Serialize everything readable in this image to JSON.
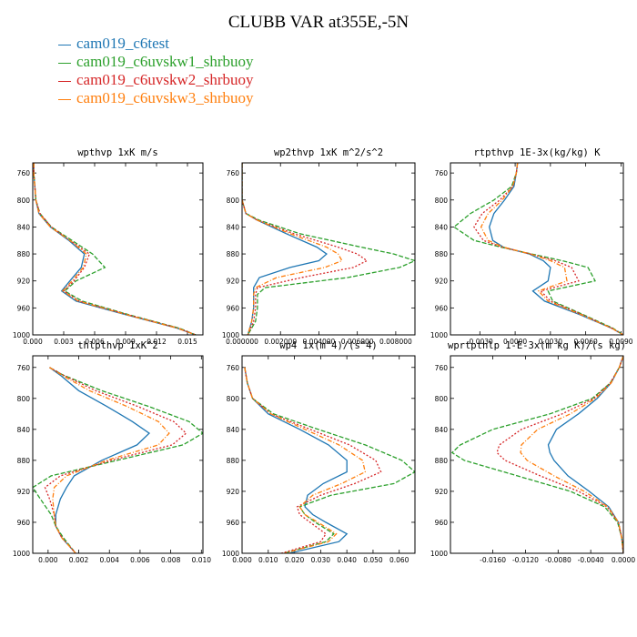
{
  "title": "CLUBB VAR at355E,-5N",
  "legend": [
    {
      "name": "cam019_c6test",
      "color": "#1f77b4",
      "dash": ""
    },
    {
      "name": "cam019_c6uvskw1_shrbuoy",
      "color": "#2ca02c",
      "dash": "5,2"
    },
    {
      "name": "cam019_c6uvskw2_shrbuoy",
      "color": "#d62728",
      "dash": "2,2"
    },
    {
      "name": "cam019_c6uvskw3_shrbuoy",
      "color": "#ff7f0e",
      "dash": "5,2,1,2"
    }
  ],
  "chart_data": [
    {
      "type": "line",
      "title": "wpthvp  1xK m/s",
      "xlim": [
        0.0,
        0.0165
      ],
      "ylim": [
        1000,
        745
      ],
      "xticks": [
        "0.000",
        "0.003",
        "0.006",
        "0.009",
        "0.012",
        "0.015"
      ],
      "xtick_values": [
        0,
        0.003,
        0.006,
        0.009,
        0.012,
        0.015
      ],
      "yticks": [
        "760",
        "800",
        "840",
        "880",
        "920",
        "960",
        "1000"
      ],
      "y": [
        745,
        760,
        780,
        800,
        820,
        840,
        860,
        880,
        900,
        920,
        935,
        950,
        970,
        990,
        1000
      ],
      "series": [
        {
          "name": "cam019_c6test",
          "values": [
            0.0001,
            0.0001,
            0.0002,
            0.0003,
            0.0006,
            0.0017,
            0.0035,
            0.005,
            0.0047,
            0.0036,
            0.0028,
            0.0042,
            0.009,
            0.014,
            0.0158
          ]
        },
        {
          "name": "cam019_c6uvskw1_shrbuoy",
          "values": [
            0.0001,
            0.0001,
            0.0002,
            0.0003,
            0.0007,
            0.0018,
            0.0038,
            0.0058,
            0.007,
            0.0042,
            0.0031,
            0.0048,
            0.0093,
            0.0142,
            0.0158
          ]
        },
        {
          "name": "cam019_c6uvskw2_shrbuoy",
          "values": [
            0.0001,
            0.0001,
            0.0002,
            0.0003,
            0.0007,
            0.0018,
            0.0036,
            0.0055,
            0.005,
            0.004,
            0.003,
            0.0045,
            0.0092,
            0.0141,
            0.0158
          ]
        },
        {
          "name": "cam019_c6uvskw3_shrbuoy",
          "values": [
            0.0001,
            0.0001,
            0.0002,
            0.0003,
            0.0006,
            0.0017,
            0.0036,
            0.0052,
            0.0049,
            0.0038,
            0.0029,
            0.0044,
            0.0091,
            0.014,
            0.0158
          ]
        }
      ]
    },
    {
      "type": "line",
      "title": "wp2thvp  1xK m^2/s^2",
      "xlim": [
        0.0,
        0.009
      ],
      "ylim": [
        1000,
        745
      ],
      "xticks": [
        "0.000000",
        "0.002000",
        "0.004000",
        "0.006000",
        "0.008000"
      ],
      "xtick_values": [
        0,
        0.002,
        0.004,
        0.006,
        0.008
      ],
      "yticks": [
        "760",
        "800",
        "840",
        "880",
        "920",
        "960",
        "1000"
      ],
      "y": [
        745,
        760,
        780,
        800,
        820,
        830,
        850,
        870,
        880,
        890,
        900,
        915,
        930,
        940,
        960,
        980,
        1000
      ],
      "series": [
        {
          "name": "cam019_c6test",
          "values": [
            0.0,
            0.0,
            0.0,
            0.0,
            0.0002,
            0.0008,
            0.0023,
            0.0039,
            0.0044,
            0.004,
            0.0025,
            0.0009,
            0.0006,
            0.0006,
            0.0006,
            0.0005,
            0.0003
          ]
        },
        {
          "name": "cam019_c6uvskw1_shrbuoy",
          "values": [
            0.0,
            0.0,
            0.0,
            0.0,
            0.0002,
            0.0009,
            0.003,
            0.0062,
            0.0079,
            0.009,
            0.0082,
            0.0055,
            0.0012,
            0.0008,
            0.0008,
            0.0007,
            0.0003
          ]
        },
        {
          "name": "cam019_c6uvskw2_shrbuoy",
          "values": [
            0.0,
            0.0,
            0.0,
            0.0,
            0.0002,
            0.0008,
            0.0027,
            0.005,
            0.006,
            0.0065,
            0.0058,
            0.0031,
            0.0008,
            0.0007,
            0.0007,
            0.0006,
            0.0003
          ]
        },
        {
          "name": "cam019_c6uvskw3_shrbuoy",
          "values": [
            0.0,
            0.0,
            0.0,
            0.0,
            0.0002,
            0.0008,
            0.0025,
            0.0044,
            0.005,
            0.0052,
            0.0043,
            0.0018,
            0.0007,
            0.0006,
            0.0006,
            0.0005,
            0.0003
          ]
        }
      ]
    },
    {
      "type": "line",
      "title": "rtpthvp  1E-3x(kg/kg) K",
      "xlim": [
        -0.0055,
        0.0092
      ],
      "ylim": [
        1000,
        745
      ],
      "xticks": [
        "-0.0030",
        "0.0000",
        "0.0030",
        "0.0060",
        "0.0090"
      ],
      "xtick_values": [
        -0.003,
        0.0,
        0.003,
        0.006,
        0.009
      ],
      "yticks": [
        "760",
        "800",
        "840",
        "880",
        "920",
        "960",
        "1000"
      ],
      "y": [
        745,
        760,
        780,
        800,
        820,
        840,
        860,
        870,
        880,
        890,
        900,
        920,
        935,
        950,
        970,
        990,
        1000
      ],
      "series": [
        {
          "name": "cam019_c6test",
          "values": [
            0.0002,
            0.0001,
            -0.0001,
            -0.0009,
            -0.0018,
            -0.0022,
            -0.0019,
            -0.001,
            0.0012,
            0.0024,
            0.003,
            0.0028,
            0.0015,
            0.0025,
            0.0055,
            0.0082,
            0.0092
          ]
        },
        {
          "name": "cam019_c6uvskw1_shrbuoy",
          "values": [
            0.0002,
            0.0001,
            -0.0003,
            -0.0018,
            -0.0038,
            -0.0052,
            -0.0035,
            -0.0012,
            0.0014,
            0.004,
            0.0062,
            0.0068,
            0.0028,
            0.0032,
            0.0058,
            0.0083,
            0.0092
          ]
        },
        {
          "name": "cam019_c6uvskw2_shrbuoy",
          "values": [
            0.0002,
            0.0001,
            -0.0002,
            -0.0013,
            -0.0028,
            -0.0035,
            -0.0027,
            -0.0011,
            0.0013,
            0.0034,
            0.0048,
            0.0054,
            0.0022,
            0.003,
            0.0057,
            0.0082,
            0.0092
          ]
        },
        {
          "name": "cam019_c6uvskw3_shrbuoy",
          "values": [
            0.0002,
            0.0001,
            -0.0002,
            -0.0011,
            -0.0023,
            -0.0029,
            -0.0023,
            -0.001,
            0.0013,
            0.003,
            0.0042,
            0.0044,
            0.002,
            0.0028,
            0.0056,
            0.0082,
            0.0092
          ]
        }
      ]
    },
    {
      "type": "line",
      "title": "thlpthvp  1xK^2",
      "xlim": [
        -0.001,
        0.0101
      ],
      "ylim": [
        1000,
        745
      ],
      "xticks": [
        "0.000",
        "0.002",
        "0.004",
        "0.006",
        "0.008",
        "0.010"
      ],
      "xtick_values": [
        0,
        0.002,
        0.004,
        0.006,
        0.008,
        0.01
      ],
      "yticks": [
        "760",
        "800",
        "840",
        "880",
        "920",
        "960",
        "1000"
      ],
      "y": [
        760,
        770,
        790,
        810,
        830,
        845,
        860,
        880,
        900,
        915,
        930,
        950,
        965,
        980,
        1000
      ],
      "series": [
        {
          "name": "cam019_c6test",
          "values": [
            0.0001,
            0.0008,
            0.002,
            0.0038,
            0.0055,
            0.0066,
            0.0058,
            0.0035,
            0.0017,
            0.0012,
            0.0008,
            0.0005,
            0.0005,
            0.0009,
            0.0018
          ]
        },
        {
          "name": "cam019_c6uvskw1_shrbuoy",
          "values": [
            0.0001,
            0.001,
            0.0035,
            0.0065,
            0.0092,
            0.0101,
            0.0088,
            0.0045,
            0.0002,
            -0.001,
            -0.0005,
            0.0002,
            0.0005,
            0.001,
            0.0018
          ]
        },
        {
          "name": "cam019_c6uvskw2_shrbuoy",
          "values": [
            0.0001,
            0.001,
            0.0031,
            0.0058,
            0.0082,
            0.009,
            0.0081,
            0.0041,
            0.0008,
            -0.0002,
            0.0001,
            0.0004,
            0.0005,
            0.0009,
            0.0018
          ]
        },
        {
          "name": "cam019_c6uvskw3_shrbuoy",
          "values": [
            0.0001,
            0.0009,
            0.0027,
            0.0051,
            0.0072,
            0.0079,
            0.0072,
            0.0038,
            0.0012,
            0.0004,
            0.0003,
            0.0004,
            0.0005,
            0.0009,
            0.0018
          ]
        }
      ]
    },
    {
      "type": "line",
      "title": "wp4  1x(m^4)/(s^4)",
      "xlim": [
        0.0,
        0.066
      ],
      "ylim": [
        1000,
        745
      ],
      "xticks": [
        "0.000",
        "0.010",
        "0.020",
        "0.030",
        "0.040",
        "0.050",
        "0.060"
      ],
      "xtick_values": [
        0,
        0.01,
        0.02,
        0.03,
        0.04,
        0.05,
        0.06
      ],
      "yticks": [
        "760",
        "800",
        "840",
        "880",
        "920",
        "960",
        "1000"
      ],
      "y": [
        760,
        780,
        800,
        820,
        840,
        860,
        880,
        895,
        910,
        925,
        940,
        950,
        960,
        975,
        985,
        1000
      ],
      "series": [
        {
          "name": "cam019_c6test",
          "values": [
            0.001,
            0.002,
            0.004,
            0.01,
            0.022,
            0.033,
            0.04,
            0.04,
            0.031,
            0.025,
            0.024,
            0.027,
            0.032,
            0.04,
            0.037,
            0.018
          ]
        },
        {
          "name": "cam019_c6uvskw1_shrbuoy",
          "values": [
            0.001,
            0.002,
            0.004,
            0.012,
            0.029,
            0.047,
            0.061,
            0.066,
            0.058,
            0.034,
            0.022,
            0.024,
            0.028,
            0.035,
            0.032,
            0.016
          ]
        },
        {
          "name": "cam019_c6uvskw2_shrbuoy",
          "values": [
            0.001,
            0.002,
            0.004,
            0.011,
            0.026,
            0.041,
            0.051,
            0.053,
            0.043,
            0.03,
            0.021,
            0.022,
            0.026,
            0.032,
            0.03,
            0.015
          ]
        },
        {
          "name": "cam019_c6uvskw3_shrbuoy",
          "values": [
            0.001,
            0.002,
            0.004,
            0.011,
            0.024,
            0.037,
            0.046,
            0.047,
            0.038,
            0.027,
            0.022,
            0.024,
            0.029,
            0.036,
            0.033,
            0.016
          ]
        }
      ]
    },
    {
      "type": "line",
      "title": "wprtpthlp  1-E-3x(m kg K)/(s kg)",
      "xlim": [
        -0.0212,
        0.0
      ],
      "ylim": [
        1000,
        745
      ],
      "xticks": [
        "-0.0160",
        "-0.0120",
        "-0.0080",
        "-0.0040",
        "0.0000"
      ],
      "xtick_values": [
        -0.016,
        -0.012,
        -0.008,
        -0.004,
        0.0
      ],
      "yticks": [
        "760",
        "800",
        "840",
        "880",
        "920",
        "960",
        "1000"
      ],
      "y": [
        745,
        760,
        780,
        800,
        820,
        840,
        860,
        870,
        880,
        900,
        920,
        940,
        960,
        980,
        1000
      ],
      "series": [
        {
          "name": "cam019_c6test",
          "values": [
            0.0,
            -0.0005,
            -0.0015,
            -0.0032,
            -0.0055,
            -0.0082,
            -0.0092,
            -0.009,
            -0.0085,
            -0.0068,
            -0.0042,
            -0.0018,
            -0.0006,
            -0.0002,
            0.0
          ]
        },
        {
          "name": "cam019_c6uvskw1_shrbuoy",
          "values": [
            0.0,
            -0.0005,
            -0.0016,
            -0.0038,
            -0.009,
            -0.016,
            -0.02,
            -0.021,
            -0.0195,
            -0.013,
            -0.0065,
            -0.0023,
            -0.0007,
            -0.0002,
            0.0
          ]
        },
        {
          "name": "cam019_c6uvskw2_shrbuoy",
          "values": [
            0.0,
            -0.0005,
            -0.0016,
            -0.0036,
            -0.0075,
            -0.0125,
            -0.0152,
            -0.0155,
            -0.0145,
            -0.0102,
            -0.0055,
            -0.002,
            -0.0006,
            -0.0002,
            0.0
          ]
        },
        {
          "name": "cam019_c6uvskw3_shrbuoy",
          "values": [
            0.0,
            -0.0005,
            -0.0015,
            -0.0034,
            -0.0065,
            -0.0105,
            -0.0125,
            -0.0126,
            -0.0118,
            -0.0085,
            -0.0048,
            -0.0019,
            -0.0006,
            -0.0002,
            0.0
          ]
        }
      ]
    }
  ]
}
